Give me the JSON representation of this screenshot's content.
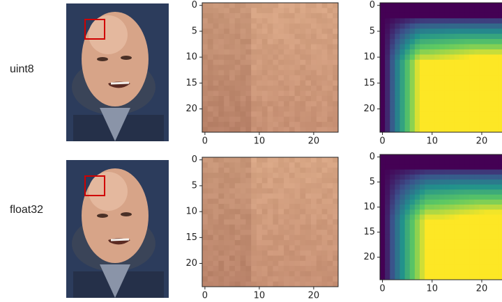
{
  "rows": [
    {
      "label": "uint8"
    },
    {
      "label": "float32"
    }
  ],
  "patch_axes": {
    "xlim": [
      -0.5,
      24.5
    ],
    "ylim": [
      24.5,
      -0.5
    ],
    "xticks": [
      0,
      10,
      20
    ],
    "yticks": [
      0,
      5,
      10,
      15,
      20
    ]
  }
}
